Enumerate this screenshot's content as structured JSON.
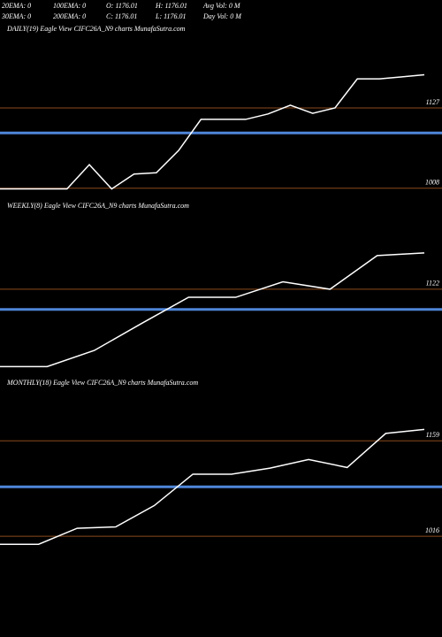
{
  "header": {
    "rows": [
      [
        "20EMA: 0",
        "100EMA: 0",
        "O: 1176.01",
        "H: 1176.01",
        "Avg Vol: 0  M"
      ],
      [
        "30EMA: 0",
        "200EMA: 0",
        "C: 1176.01",
        "L: 1176.01",
        "Day Vol: 0  M"
      ]
    ]
  },
  "chart_data": [
    {
      "type": "line",
      "title": "DAILY(19) Eagle  View  CIFC26A_N9 charts MunafaSutra.com",
      "color": "#ffffff",
      "values": [
        1007,
        1007,
        1007,
        1007,
        1043,
        1007,
        1029,
        1031,
        1064,
        1110,
        1110,
        1110,
        1118,
        1131,
        1119,
        1127,
        1170,
        1170,
        1173,
        1176
      ],
      "ylim": [
        992,
        1254
      ],
      "yticks": [
        1127,
        1008
      ],
      "tick_color": "#8b4a1c",
      "hline": {
        "value": 1090,
        "color": "#4f86d9"
      }
    },
    {
      "type": "line",
      "title": "WEEKLY(8) Eagle  View  CIFC26A_N9 charts MunafaSutra.com",
      "color": "#ffffff",
      "values": [
        1007,
        1007,
        1031,
        1071,
        1110,
        1110,
        1133,
        1122,
        1172,
        1176
      ],
      "ylim": [
        993,
        1256
      ],
      "yticks": [
        1122
      ],
      "tick_color": "#8b4a1c",
      "hline": {
        "value": 1092,
        "color": "#4f86d9"
      }
    },
    {
      "type": "line",
      "title": "MONTHLY(18) Eagle  View  CIFC26A_N9 charts MunafaSutra.com",
      "color": "#ffffff",
      "values": [
        1004,
        1004,
        1028,
        1030,
        1062,
        1109,
        1109,
        1118,
        1131,
        1119,
        1170,
        1176
      ],
      "ylim": [
        991,
        1256
      ],
      "yticks": [
        1159,
        1016
      ],
      "tick_color": "#8b4a1c",
      "hline": {
        "value": 1090,
        "color": "#4f86d9"
      }
    }
  ]
}
